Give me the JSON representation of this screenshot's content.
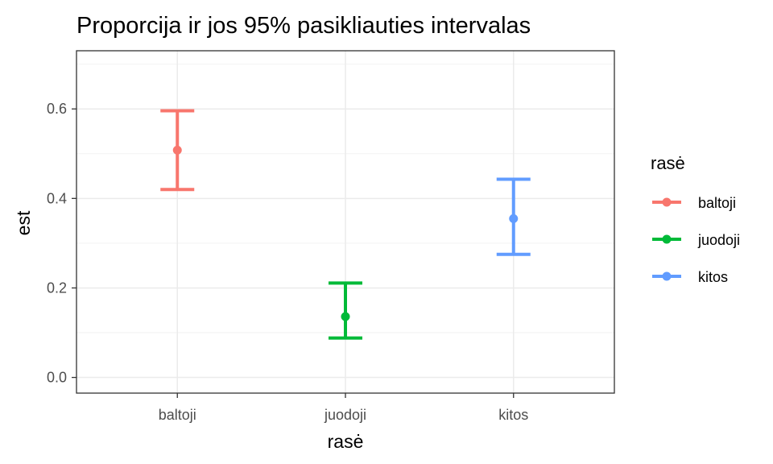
{
  "chart_data": {
    "type": "errorbar",
    "title": "Proporcija ir jos 95% pasikliauties intervalas",
    "xlabel": "rasė",
    "ylabel": "est",
    "categories": [
      "baltoji",
      "juodoji",
      "kitos"
    ],
    "ylim": [
      -0.035,
      0.73
    ],
    "yticks": [
      0.0,
      0.2,
      0.4,
      0.6
    ],
    "ytick_labels": [
      "0.0",
      "0.2",
      "0.4",
      "0.6"
    ],
    "grid": true,
    "legend": {
      "title": "rasė",
      "position": "right"
    },
    "series": [
      {
        "name": "baltoji",
        "color": "#F8766D",
        "est": 0.508,
        "lower": 0.42,
        "upper": 0.596
      },
      {
        "name": "juodoji",
        "color": "#00BA38",
        "est": 0.136,
        "lower": 0.088,
        "upper": 0.211
      },
      {
        "name": "kitos",
        "color": "#619CFF",
        "est": 0.355,
        "lower": 0.275,
        "upper": 0.443
      }
    ]
  }
}
